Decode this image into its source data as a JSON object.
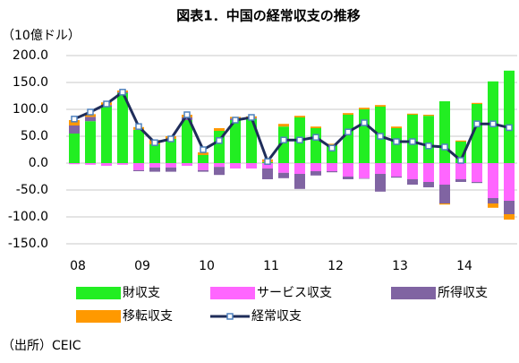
{
  "chart_data": {
    "type": "bar",
    "title": "図表1．中国の経常収支の推移",
    "y_label": "（10億ドル）",
    "source": "（出所）CEIC",
    "categories": [
      "08",
      null,
      null,
      null,
      "09",
      null,
      null,
      null,
      "10",
      null,
      null,
      null,
      "11",
      null,
      null,
      null,
      "12",
      null,
      null,
      null,
      "13",
      null,
      null,
      null,
      "14",
      null,
      null,
      null
    ],
    "series": [
      {
        "name": "財収支",
        "color": "#22ee22",
        "values": [
          55,
          78,
          105,
          130,
          62,
          35,
          45,
          80,
          15,
          60,
          80,
          82,
          2,
          68,
          85,
          65,
          33,
          90,
          100,
          105,
          65,
          90,
          88,
          115,
          40,
          110,
          152,
          172
        ]
      },
      {
        "name": "サービス収支",
        "color": "#ff66ff",
        "values": [
          -2,
          -3,
          -5,
          -3,
          -13,
          -8,
          -8,
          -5,
          -13,
          -7,
          -10,
          -10,
          -10,
          -18,
          -20,
          -15,
          -15,
          -25,
          -28,
          -20,
          -25,
          -30,
          -35,
          -40,
          -30,
          -35,
          -65,
          -70
        ]
      },
      {
        "name": "所得収支",
        "color": "#8064a2",
        "values": [
          15,
          8,
          3,
          2,
          -2,
          -8,
          -8,
          5,
          -3,
          -15,
          3,
          2,
          -20,
          -10,
          -28,
          -8,
          -2,
          -5,
          -1,
          -33,
          -2,
          -10,
          -10,
          -35,
          -5,
          -2,
          -10,
          -25
        ]
      },
      {
        "name": "移転収支",
        "color": "#ff9900",
        "values": [
          10,
          5,
          5,
          3,
          5,
          8,
          5,
          5,
          5,
          5,
          3,
          3,
          5,
          5,
          3,
          3,
          3,
          3,
          3,
          3,
          3,
          2,
          2,
          -2,
          2,
          2,
          -8,
          -10
        ]
      },
      {
        "name": "経常収支",
        "color": "#1f2d5a",
        "type": "line",
        "values": [
          82,
          95,
          110,
          132,
          68,
          38,
          45,
          90,
          25,
          42,
          80,
          85,
          3,
          43,
          43,
          48,
          28,
          58,
          75,
          50,
          40,
          40,
          32,
          30,
          5,
          73,
          73,
          66
        ]
      }
    ],
    "ylim": [
      -150,
      200
    ],
    "yticks": [
      {
        "value": -150,
        "label": "-150.0"
      },
      {
        "value": -100,
        "label": "-100.0"
      },
      {
        "value": -50,
        "label": "-50.0"
      },
      {
        "value": 0,
        "label": "0.0"
      },
      {
        "value": 50,
        "label": "50.0"
      },
      {
        "value": 100,
        "label": "100.0"
      },
      {
        "value": 150,
        "label": "150.0"
      },
      {
        "value": 200,
        "label": "200.0"
      }
    ],
    "grid": true
  }
}
